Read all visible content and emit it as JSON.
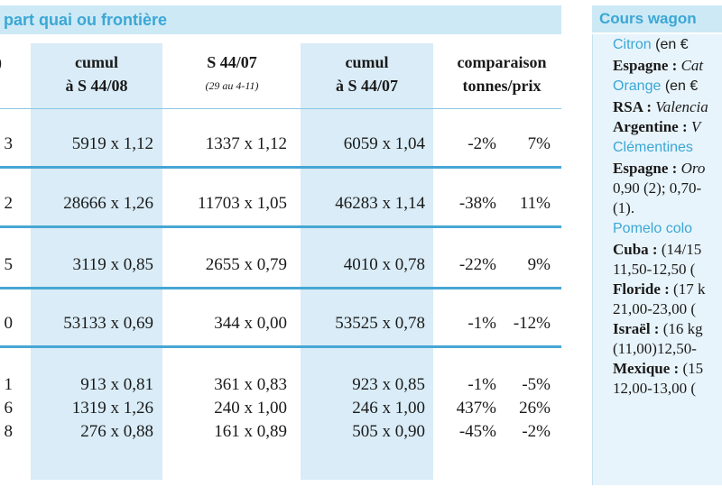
{
  "left_section": {
    "title": "part quai ou frontière",
    "headers": {
      "cut": "",
      "cumul_1": [
        "cumul",
        "à S 44/08"
      ],
      "s44": [
        "S 44/07",
        "(29 au 4-11)"
      ],
      "cumul_2": [
        "cumul",
        "à S 44/07"
      ],
      "comparaison": [
        "comparaison",
        "tonnes/prix"
      ]
    },
    "rows": [
      {
        "cut": "3",
        "cumul_44_08": "5919 x 1,12",
        "s44_07": "1337 x 1,12",
        "cumul_44_07": "6059 x 1,04",
        "tonnes": "-2%",
        "prix": "7%"
      },
      {
        "cut": "2",
        "cumul_44_08": "28666 x 1,26",
        "s44_07": "11703 x 1,05",
        "cumul_44_07": "46283 x 1,14",
        "tonnes": "-38%",
        "prix": "11%"
      },
      {
        "cut": "5",
        "cumul_44_08": "3119 x 0,85",
        "s44_07": "2655 x 0,79",
        "cumul_44_07": "4010 x 0,78",
        "tonnes": "-22%",
        "prix": "9%"
      },
      {
        "cut": "0",
        "cumul_44_08": "53133 x 0,69",
        "s44_07": "344 x 0,00",
        "cumul_44_07": "53525 x 0,78",
        "tonnes": "-1%",
        "prix": "-12%"
      },
      {
        "cut": "1",
        "cumul_44_08": "913 x 0,81",
        "s44_07": "361 x 0,83",
        "cumul_44_07": "923 x 0,85",
        "tonnes": "-1%",
        "prix": "-5%"
      },
      {
        "cut": "6",
        "cumul_44_08": "1319 x 1,26",
        "s44_07": "240 x 1,00",
        "cumul_44_07": "246 x 1,00",
        "tonnes": "437%",
        "prix": "26%"
      },
      {
        "cut": "8",
        "cumul_44_08": "276 x 0,88",
        "s44_07": "161 x 0,89",
        "cumul_44_07": "505 x 0,90",
        "tonnes": "-45%",
        "prix": "-2%"
      }
    ]
  },
  "right_section": {
    "title": "Cours wagon",
    "lines": [
      {
        "kind": "cat",
        "a": "Citron",
        "b": " (en €"
      },
      {
        "kind": "ln",
        "a": "Espagne :",
        "b": " Cat"
      },
      {
        "kind": "cat",
        "a": "Orange",
        "b": " (en €"
      },
      {
        "kind": "ln",
        "a": "RSA :",
        "b": " Valencia"
      },
      {
        "kind": "ln",
        "a": "Argentine :",
        "b": " V"
      },
      {
        "kind": "cat",
        "a": "Clémentines",
        "b": ""
      },
      {
        "kind": "ln",
        "a": "Espagne :",
        "b": " Oro"
      },
      {
        "kind": "plain",
        "a": "0,90 (2); 0,70-",
        "b": ""
      },
      {
        "kind": "plain",
        "a": "(1).",
        "b": ""
      },
      {
        "kind": "cat",
        "a": "Pomelo colo",
        "b": ""
      },
      {
        "kind": "ln",
        "a": "Cuba :",
        "b": " (14/15"
      },
      {
        "kind": "plain",
        "a": "11,50-12,50 (",
        "b": ""
      },
      {
        "kind": "ln",
        "a": "Floride :",
        "b": " (17 k"
      },
      {
        "kind": "plain",
        "a": "21,00-23,00 (",
        "b": ""
      },
      {
        "kind": "ln",
        "a": "Israël :",
        "b": " (16 kg"
      },
      {
        "kind": "plain",
        "a": "(11,00)12,50-",
        "b": ""
      },
      {
        "kind": "ln",
        "a": "Mexique :",
        "b": " (15"
      },
      {
        "kind": "plain",
        "a": "12,00-13,00 (",
        "b": ""
      }
    ]
  }
}
